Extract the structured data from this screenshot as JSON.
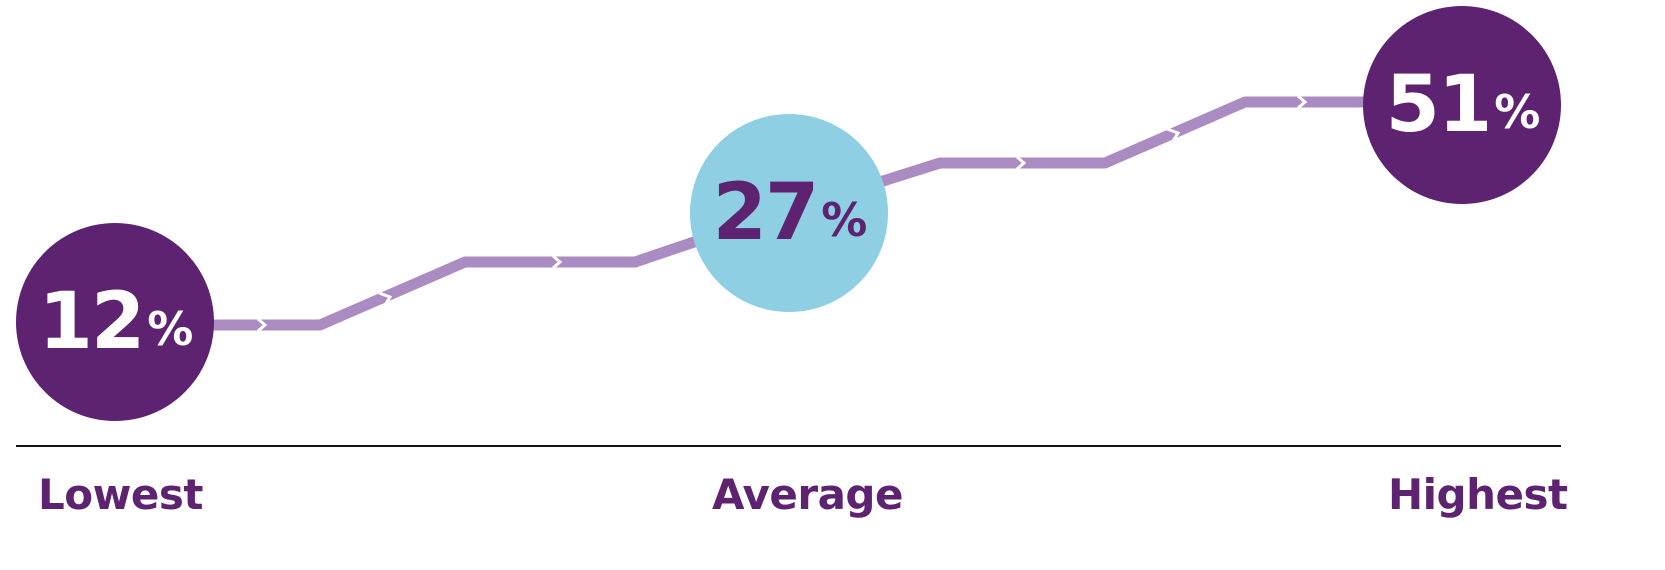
{
  "diagram": {
    "stages": [
      {
        "value": "12",
        "unit": "%",
        "label": "Lowest",
        "fill": "#5e2370",
        "text_color": "#ffffff"
      },
      {
        "value": "27",
        "unit": "%",
        "label": "Average",
        "fill": "#8ecfe3",
        "text_color": "#5e2370"
      },
      {
        "value": "51",
        "unit": "%",
        "label": "Highest",
        "fill": "#5e2370",
        "text_color": "#ffffff"
      }
    ],
    "connector_color": "#ab8cc2",
    "baseline_color": "#111111",
    "label_color": "#5e2370"
  }
}
